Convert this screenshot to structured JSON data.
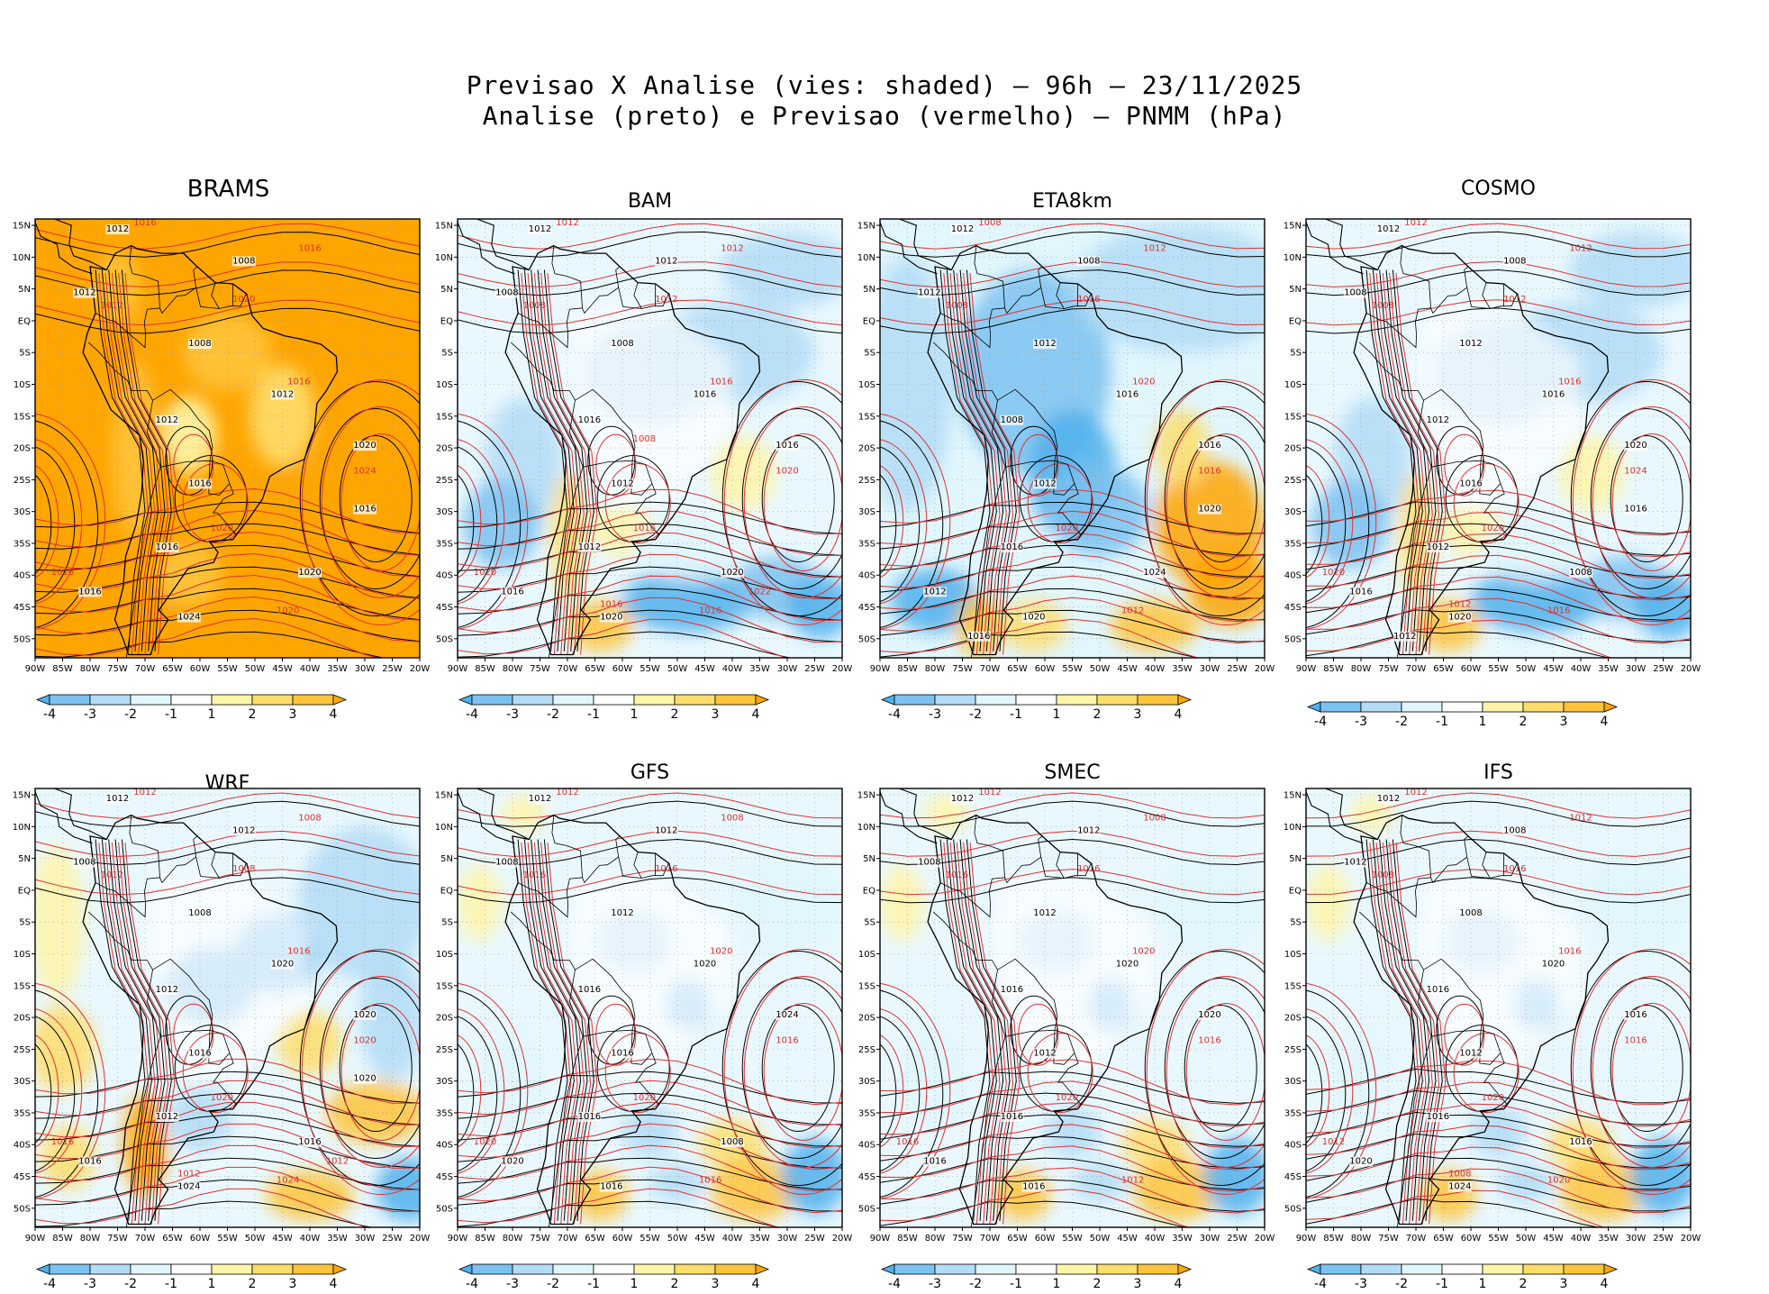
{
  "title_line1": "Previsao X Analise (vies: shaded) — 96h — 23/11/2025",
  "title_line2": "Analise (preto) e Previsao (vermelho) — PNMM (hPa)",
  "lat_ticks": [
    "15N",
    "10N",
    "5N",
    "EQ",
    "5S",
    "10S",
    "15S",
    "20S",
    "25S",
    "30S",
    "35S",
    "40S",
    "45S",
    "50S"
  ],
  "lon_ticks": [
    "90W",
    "85W",
    "80W",
    "75W",
    "70W",
    "65W",
    "60W",
    "55W",
    "50W",
    "45W",
    "40W",
    "35W",
    "30W",
    "25W",
    "20W"
  ],
  "colorbar": {
    "labels": [
      "-4",
      "-3",
      "-2",
      "-1",
      "1",
      "2",
      "3",
      "4"
    ],
    "colors": [
      "#4fb0ec",
      "#7cc2f0",
      "#b3dcf6",
      "#e1f6fd",
      "#ffffff",
      "#fff5a8",
      "#ffdd6b",
      "#ffc43a",
      "#ffa500"
    ]
  },
  "contour_colors": {
    "analysis": "#000000",
    "forecast": "#e03030"
  },
  "panels": [
    {
      "model": "BRAMS",
      "bias": "warm-all",
      "labels_black": [
        "1012",
        "1008",
        "1012",
        "1008",
        "1012",
        "1016",
        "1016",
        "1016",
        "1020",
        "1024",
        "1012",
        "1020",
        "1016"
      ],
      "labels_red": [
        "1016",
        "1016",
        "1012",
        "1020",
        "1016",
        "1020",
        "1024",
        "1020",
        "1016"
      ]
    },
    {
      "model": "BAM",
      "bias": "mixed-cool",
      "labels_black": [
        "1012",
        "1012",
        "1008",
        "1008",
        "1016",
        "1012",
        "1012",
        "1016",
        "1016",
        "1020",
        "1016",
        "1020"
      ],
      "labels_red": [
        "1012",
        "1012",
        "1008",
        "1012",
        "1016",
        "1016",
        "1020",
        "1016",
        "1020",
        "1016",
        "1022",
        "1008"
      ]
    },
    {
      "model": "ETA8km",
      "bias": "cool-continent",
      "labels_black": [
        "1012",
        "1008",
        "1012",
        "1012",
        "1008",
        "1012",
        "1016",
        "1012",
        "1016",
        "1020",
        "1016",
        "1024",
        "1020",
        "1016"
      ],
      "labels_red": [
        "1008",
        "1012",
        "1008",
        "1016",
        "1020",
        "1020",
        "1016",
        "1012"
      ]
    },
    {
      "model": "COSMO",
      "bias": "mixed-cool",
      "labels_black": [
        "1012",
        "1008",
        "1008",
        "1012",
        "1012",
        "1016",
        "1012",
        "1016",
        "1020",
        "1020",
        "1016",
        "1008",
        "1016",
        "1012"
      ],
      "labels_red": [
        "1012",
        "1012",
        "1008",
        "1012",
        "1016",
        "1020",
        "1024",
        "1016",
        "1020",
        "1012"
      ]
    },
    {
      "model": "WRF",
      "bias": "mixed-warm",
      "labels_black": [
        "1012",
        "1012",
        "1008",
        "1008",
        "1012",
        "1016",
        "1012",
        "1016",
        "1020",
        "1024",
        "1020",
        "1016",
        "1020"
      ],
      "labels_red": [
        "1012",
        "1008",
        "1012",
        "1008",
        "1016",
        "1020",
        "1020",
        "1024",
        "1016",
        "1012",
        "1012"
      ]
    },
    {
      "model": "GFS",
      "bias": "mild-mixed",
      "labels_black": [
        "1012",
        "1012",
        "1008",
        "1012",
        "1016",
        "1016",
        "1016",
        "1020",
        "1024",
        "1016",
        "1020",
        "1008"
      ],
      "labels_red": [
        "1012",
        "1008",
        "1016",
        "1016",
        "1020",
        "1020",
        "1016",
        "1016",
        "1020"
      ]
    },
    {
      "model": "SMEC",
      "bias": "mild-mixed",
      "labels_black": [
        "1012",
        "1012",
        "1008",
        "1012",
        "1016",
        "1012",
        "1016",
        "1016",
        "1020",
        "1016",
        "1020"
      ],
      "labels_red": [
        "1012",
        "1008",
        "1016",
        "1016",
        "1020",
        "1020",
        "1016",
        "1012",
        "1016"
      ]
    },
    {
      "model": "IFS",
      "bias": "mild-mixed",
      "labels_black": [
        "1012",
        "1008",
        "1012",
        "1008",
        "1016",
        "1012",
        "1016",
        "1020",
        "1016",
        "1024",
        "1020",
        "1016"
      ],
      "labels_red": [
        "1012",
        "1012",
        "1008",
        "1016",
        "1016",
        "1020",
        "1016",
        "1020",
        "1012",
        "1008"
      ]
    }
  ]
}
